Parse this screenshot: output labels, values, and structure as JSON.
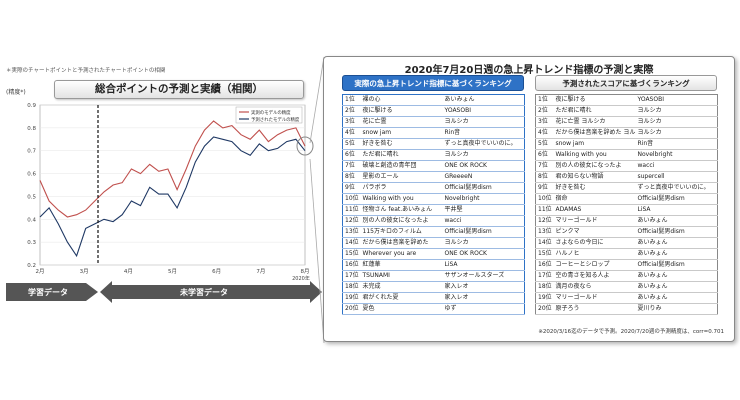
{
  "left_panel": {
    "note": "＊実際のチャートポイントと予測されたチャートポイントの相関",
    "y_axis_label": "(精度*)",
    "chart_title": "総合ポイントの予測と実績（相関）",
    "phase_learned": "学習データ",
    "phase_unlearned": "未学習データ"
  },
  "chart_data": {
    "type": "line",
    "title": "総合ポイントの予測と実績（相関）",
    "ylabel": "(精度*)",
    "ylim": [
      0.2,
      0.9
    ],
    "yticks": [
      "0.9",
      "0.8",
      "0.7",
      "0.6",
      "0.5",
      "0.4",
      "0.3",
      "0.2"
    ],
    "xticks": [
      "2月",
      "3月",
      "4月",
      "5月",
      "6月",
      "7月",
      "8月"
    ],
    "x_end_label": "2020年",
    "legend_position": "top-right",
    "series": [
      {
        "name": "実測のモデルの精度",
        "color": "#c0504d",
        "values": [
          0.57,
          0.48,
          0.44,
          0.41,
          0.42,
          0.44,
          0.48,
          0.52,
          0.55,
          0.56,
          0.62,
          0.6,
          0.64,
          0.61,
          0.62,
          0.53,
          0.62,
          0.72,
          0.79,
          0.83,
          0.8,
          0.81,
          0.77,
          0.75,
          0.79,
          0.74,
          0.77,
          0.79,
          0.8,
          0.72
        ]
      },
      {
        "name": "予測されたモデルの精度",
        "color": "#1f3864",
        "values": [
          0.41,
          0.45,
          0.38,
          0.3,
          0.24,
          0.36,
          0.38,
          0.4,
          0.39,
          0.42,
          0.48,
          0.46,
          0.54,
          0.51,
          0.51,
          0.45,
          0.54,
          0.65,
          0.72,
          0.76,
          0.75,
          0.74,
          0.7,
          0.68,
          0.73,
          0.7,
          0.71,
          0.74,
          0.75,
          0.7
        ]
      }
    ]
  },
  "ranking": {
    "title": "2020年7月20日週の急上昇トレンド指標の予測と実際",
    "left_header": "実際の急上昇トレンド指標に基づくランキング",
    "right_header": "予測されたスコアに基づくランキング",
    "left_rows": [
      {
        "rank": "1位",
        "song": "裸の心",
        "artist": "あいみょん"
      },
      {
        "rank": "2位",
        "song": "夜に駆ける",
        "artist": "YOASOBI"
      },
      {
        "rank": "3位",
        "song": "花に亡霊",
        "artist": "ヨルシカ"
      },
      {
        "rank": "4位",
        "song": "snow jam",
        "artist": "Rin音"
      },
      {
        "rank": "5位",
        "song": "好きを咎む",
        "artist": "ずっと真夜中でいいのに。"
      },
      {
        "rank": "6位",
        "song": "ただ君に晴れ",
        "artist": "ヨルシカ"
      },
      {
        "rank": "7位",
        "song": "破壊と創造の青年団",
        "artist": "ONE OK ROCK"
      },
      {
        "rank": "8位",
        "song": "星影のエール",
        "artist": "GReeeeN"
      },
      {
        "rank": "9位",
        "song": "パラボラ",
        "artist": "Official髭男dism"
      },
      {
        "rank": "10位",
        "song": "Walking with you",
        "artist": "Novelbright"
      },
      {
        "rank": "11位",
        "song": "怪物さん feat.あいみょん",
        "artist": "平井堅"
      },
      {
        "rank": "12位",
        "song": "別の人の彼女になったよ",
        "artist": "wacci"
      },
      {
        "rank": "13位",
        "song": "115万キロのフィルム",
        "artist": "Official髭男dism"
      },
      {
        "rank": "14位",
        "song": "だから僕は音楽を辞めた",
        "artist": "ヨルシカ"
      },
      {
        "rank": "15位",
        "song": "Wherever you are",
        "artist": "ONE OK ROCK"
      },
      {
        "rank": "16位",
        "song": "紅蓮華",
        "artist": "LiSA"
      },
      {
        "rank": "17位",
        "song": "TSUNAMI",
        "artist": "サザンオールスターズ"
      },
      {
        "rank": "18位",
        "song": "未完成",
        "artist": "家入レオ"
      },
      {
        "rank": "19位",
        "song": "君がくれた夏",
        "artist": "家入レオ"
      },
      {
        "rank": "20位",
        "song": "夏色",
        "artist": "ゆず"
      }
    ],
    "right_rows": [
      {
        "rank": "1位",
        "song": "夜に駆ける",
        "artist": "YOASOBI"
      },
      {
        "rank": "2位",
        "song": "ただ君に晴れ",
        "artist": "ヨルシカ"
      },
      {
        "rank": "3位",
        "song": "花に亡霊 ヨルシカ",
        "artist": "ヨルシカ"
      },
      {
        "rank": "4位",
        "song": "だから僕は音楽を辞めた ヨルシカ",
        "artist": "ヨルシカ"
      },
      {
        "rank": "5位",
        "song": "snow jam",
        "artist": "Rin音"
      },
      {
        "rank": "6位",
        "song": "Walking with you",
        "artist": "Novelbright"
      },
      {
        "rank": "7位",
        "song": "別の人の彼女になったよ",
        "artist": "wacci"
      },
      {
        "rank": "8位",
        "song": "君の知らない物語",
        "artist": "supercell"
      },
      {
        "rank": "9位",
        "song": "好きを咎む",
        "artist": "ずっと真夜中でいいのに。"
      },
      {
        "rank": "10位",
        "song": "宿命",
        "artist": "Official髭男dism"
      },
      {
        "rank": "11位",
        "song": "ADAMAS",
        "artist": "LiSA"
      },
      {
        "rank": "12位",
        "song": "マリーゴールド",
        "artist": "あいみょん"
      },
      {
        "rank": "13位",
        "song": "ピンクマ",
        "artist": "Official髭男dism"
      },
      {
        "rank": "14位",
        "song": "さよならの今日に",
        "artist": "あいみょん"
      },
      {
        "rank": "15位",
        "song": "ハルノヒ",
        "artist": "あいみょん"
      },
      {
        "rank": "16位",
        "song": "コーヒーとシロップ",
        "artist": "Official髭男dism"
      },
      {
        "rank": "17位",
        "song": "空の青さを知る人よ",
        "artist": "あいみょん"
      },
      {
        "rank": "18位",
        "song": "満月の夜なら",
        "artist": "あいみょん"
      },
      {
        "rank": "19位",
        "song": "マリーゴールド",
        "artist": "あいみょん"
      },
      {
        "rank": "20位",
        "song": "原子ろう",
        "artist": "夏川りみ"
      }
    ],
    "footnote": "※2020/3/16迄のデータで予測。2020/7/20週の予測精度は、corr=0.701"
  },
  "colors": {
    "accent_blue": "#2e72c6",
    "phase_gray": "#555555",
    "actual_line": "#c0504d",
    "predicted_line": "#1f3864"
  }
}
